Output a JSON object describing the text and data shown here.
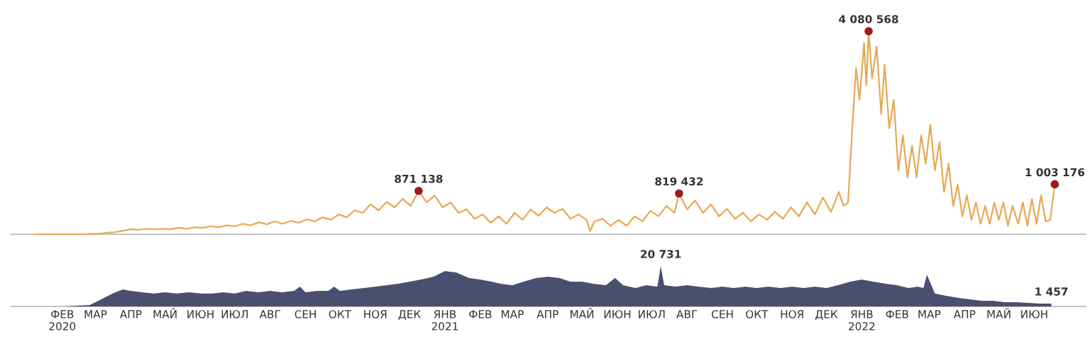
{
  "chart_data": [
    {
      "type": "line",
      "xlim": [
        "2020-01-01",
        "2022-07-30"
      ],
      "tick_labels": false,
      "series": [
        {
          "color": "#e8a854",
          "x": [
            "2020-01-22",
            "2020-02-05",
            "2020-02-19",
            "2020-03-04",
            "2020-03-11",
            "2020-03-18",
            "2020-03-25",
            "2020-04-01",
            "2020-04-08",
            "2020-04-15",
            "2020-04-22",
            "2020-04-29",
            "2020-05-06",
            "2020-05-13",
            "2020-05-20",
            "2020-05-27",
            "2020-06-03",
            "2020-06-10",
            "2020-06-17",
            "2020-06-24",
            "2020-07-01",
            "2020-07-08",
            "2020-07-15",
            "2020-07-22",
            "2020-07-29",
            "2020-08-05",
            "2020-08-12",
            "2020-08-19",
            "2020-08-26",
            "2020-09-02",
            "2020-09-09",
            "2020-09-16",
            "2020-09-23",
            "2020-09-30",
            "2020-10-07",
            "2020-10-14",
            "2020-10-21",
            "2020-10-28",
            "2020-11-04",
            "2020-11-11",
            "2020-11-18",
            "2020-11-25",
            "2020-12-02",
            "2020-12-09",
            "2020-12-16",
            "2020-12-23",
            "2020-12-30",
            "2021-01-06",
            "2021-01-13",
            "2021-01-20",
            "2021-01-27",
            "2021-02-03",
            "2021-02-10",
            "2021-02-17",
            "2021-02-24",
            "2021-03-03",
            "2021-03-10",
            "2021-03-17",
            "2021-03-24",
            "2021-03-31",
            "2021-04-07",
            "2021-04-14",
            "2021-04-21",
            "2021-04-28",
            "2021-05-05",
            "2021-05-12",
            "2021-05-19",
            "2021-05-22",
            "2021-05-26",
            "2021-06-02",
            "2021-06-09",
            "2021-06-16",
            "2021-06-23",
            "2021-06-30",
            "2021-07-07",
            "2021-07-14",
            "2021-07-21",
            "2021-07-28",
            "2021-08-04",
            "2021-08-08",
            "2021-08-15",
            "2021-08-22",
            "2021-08-29",
            "2021-09-05",
            "2021-09-12",
            "2021-09-19",
            "2021-09-26",
            "2021-10-03",
            "2021-10-10",
            "2021-10-17",
            "2021-10-24",
            "2021-10-31",
            "2021-11-07",
            "2021-11-14",
            "2021-11-21",
            "2021-11-28",
            "2021-12-05",
            "2021-12-12",
            "2021-12-19",
            "2021-12-26",
            "2021-12-30",
            "2022-01-03",
            "2022-01-07",
            "2022-01-10",
            "2022-01-13",
            "2022-01-17",
            "2022-01-19",
            "2022-01-21",
            "2022-01-24",
            "2022-01-28",
            "2022-02-01",
            "2022-02-04",
            "2022-02-08",
            "2022-02-12",
            "2022-02-16",
            "2022-02-20",
            "2022-02-24",
            "2022-02-28",
            "2022-03-04",
            "2022-03-08",
            "2022-03-12",
            "2022-03-16",
            "2022-03-20",
            "2022-03-24",
            "2022-03-28",
            "2022-04-01",
            "2022-04-05",
            "2022-04-09",
            "2022-04-13",
            "2022-04-17",
            "2022-04-21",
            "2022-04-25",
            "2022-04-29",
            "2022-05-03",
            "2022-05-07",
            "2022-05-11",
            "2022-05-15",
            "2022-05-19",
            "2022-05-23",
            "2022-05-27",
            "2022-06-01",
            "2022-06-05",
            "2022-06-09",
            "2022-06-13",
            "2022-06-17",
            "2022-06-21",
            "2022-06-25",
            "2022-06-29",
            "2022-07-03"
          ],
          "values": [
            0,
            0,
            0,
            0,
            10000,
            10000,
            30000,
            40000,
            70000,
            100000,
            90000,
            110000,
            100000,
            110000,
            100000,
            130000,
            110000,
            140000,
            130000,
            160000,
            140000,
            180000,
            160000,
            210000,
            180000,
            240000,
            200000,
            260000,
            210000,
            270000,
            230000,
            300000,
            260000,
            340000,
            290000,
            400000,
            340000,
            480000,
            430000,
            600000,
            480000,
            650000,
            540000,
            710000,
            570000,
            871138,
            640000,
            780000,
            540000,
            640000,
            430000,
            500000,
            310000,
            400000,
            230000,
            360000,
            210000,
            430000,
            290000,
            500000,
            370000,
            540000,
            430000,
            510000,
            310000,
            400000,
            290000,
            60000,
            260000,
            310000,
            170000,
            290000,
            170000,
            360000,
            260000,
            470000,
            360000,
            570000,
            430000,
            819432,
            500000,
            680000,
            430000,
            600000,
            360000,
            510000,
            310000,
            430000,
            260000,
            400000,
            290000,
            450000,
            310000,
            540000,
            360000,
            640000,
            400000,
            740000,
            450000,
            850000,
            570000,
            640000,
            2270000,
            3340000,
            2700000,
            3840000,
            2990000,
            4080568,
            3130000,
            3770000,
            2420000,
            3410000,
            2130000,
            2700000,
            1280000,
            1990000,
            1140000,
            1780000,
            1140000,
            1990000,
            1420000,
            2200000,
            1280000,
            1850000,
            850000,
            1420000,
            570000,
            1000000,
            360000,
            780000,
            290000,
            640000,
            210000,
            570000,
            210000,
            640000,
            290000,
            640000,
            170000,
            570000,
            210000,
            640000,
            170000,
            710000,
            210000,
            780000,
            260000,
            290000,
            1003176
          ]
        },
        {
          "type": "scatter",
          "color": "#9b1c20",
          "x": [
            "2020-12-23",
            "2021-08-08",
            "2022-01-21",
            "2022-07-03"
          ],
          "values": [
            871138,
            819432,
            4080568,
            1003176
          ],
          "data_labels": true
        }
      ]
    },
    {
      "type": "area",
      "xlim": [
        "2020-01-01",
        "2022-07-30"
      ],
      "tick_labels": "x",
      "xticks": [
        {
          "value": "2020-02-15",
          "label": "ФЕВ\n2020"
        },
        {
          "value": "2020-03-15",
          "label": "МАР"
        },
        {
          "value": "2020-04-15",
          "label": "АПР"
        },
        {
          "value": "2020-05-15",
          "label": "МАЙ"
        },
        {
          "value": "2020-06-15",
          "label": "ИЮН"
        },
        {
          "value": "2020-07-15",
          "label": "ИЮЛ"
        },
        {
          "value": "2020-08-15",
          "label": "АВГ"
        },
        {
          "value": "2020-09-15",
          "label": "СЕН"
        },
        {
          "value": "2020-10-15",
          "label": "ОКТ"
        },
        {
          "value": "2020-11-15",
          "label": "НОЯ"
        },
        {
          "value": "2020-12-15",
          "label": "ДЕК"
        },
        {
          "value": "2021-01-15",
          "label": "ЯНВ\n2021"
        },
        {
          "value": "2021-02-15",
          "label": "ФЕВ"
        },
        {
          "value": "2021-03-15",
          "label": "МАР"
        },
        {
          "value": "2021-04-15",
          "label": "АПР"
        },
        {
          "value": "2021-05-15",
          "label": "МАЙ"
        },
        {
          "value": "2021-06-15",
          "label": "ИЮН"
        },
        {
          "value": "2021-07-15",
          "label": "ИЮЛ"
        },
        {
          "value": "2021-08-15",
          "label": "АВГ"
        },
        {
          "value": "2021-09-15",
          "label": "СЕН"
        },
        {
          "value": "2021-10-15",
          "label": "ОКТ"
        },
        {
          "value": "2021-11-15",
          "label": "НОЯ"
        },
        {
          "value": "2021-12-15",
          "label": "ДЕК"
        },
        {
          "value": "2022-01-15",
          "label": "ЯНВ\n2022"
        },
        {
          "value": "2022-02-15",
          "label": "ФЕВ"
        },
        {
          "value": "2022-03-15",
          "label": "МАР"
        },
        {
          "value": "2022-04-15",
          "label": "АПР"
        },
        {
          "value": "2022-05-15",
          "label": "МАЙ"
        },
        {
          "value": "2022-06-15",
          "label": "ИЮН"
        }
      ],
      "series": [
        {
          "color": "#4b4f6f",
          "x": [
            "2020-01-22",
            "2020-02-15",
            "2020-03-10",
            "2020-03-20",
            "2020-03-30",
            "2020-04-08",
            "2020-04-15",
            "2020-04-25",
            "2020-05-05",
            "2020-05-15",
            "2020-05-25",
            "2020-06-05",
            "2020-06-15",
            "2020-06-25",
            "2020-07-05",
            "2020-07-15",
            "2020-07-25",
            "2020-08-05",
            "2020-08-15",
            "2020-08-25",
            "2020-09-05",
            "2020-09-10",
            "2020-09-15",
            "2020-09-25",
            "2020-10-05",
            "2020-10-10",
            "2020-10-15",
            "2020-10-25",
            "2020-11-05",
            "2020-11-15",
            "2020-11-25",
            "2020-12-05",
            "2020-12-15",
            "2020-12-25",
            "2021-01-05",
            "2021-01-15",
            "2021-01-25",
            "2021-02-05",
            "2021-02-15",
            "2021-02-25",
            "2021-03-05",
            "2021-03-15",
            "2021-03-25",
            "2021-04-05",
            "2021-04-15",
            "2021-04-25",
            "2021-05-05",
            "2021-05-15",
            "2021-05-25",
            "2021-06-05",
            "2021-06-13",
            "2021-06-20",
            "2021-07-01",
            "2021-07-10",
            "2021-07-20",
            "2021-07-23",
            "2021-07-26",
            "2021-08-05",
            "2021-08-15",
            "2021-08-25",
            "2021-09-05",
            "2021-09-15",
            "2021-09-25",
            "2021-10-05",
            "2021-10-15",
            "2021-10-25",
            "2021-11-05",
            "2021-11-15",
            "2021-11-25",
            "2021-12-05",
            "2021-12-15",
            "2021-12-25",
            "2022-01-05",
            "2022-01-15",
            "2022-01-25",
            "2022-02-05",
            "2022-02-15",
            "2022-02-25",
            "2022-03-05",
            "2022-03-10",
            "2022-03-13",
            "2022-03-20",
            "2022-03-30",
            "2022-04-10",
            "2022-04-20",
            "2022-04-30",
            "2022-05-10",
            "2022-05-20",
            "2022-05-30",
            "2022-06-10",
            "2022-06-20",
            "2022-06-30"
          ],
          "values": [
            0,
            0,
            700,
            3600,
            6600,
            8700,
            8000,
            7300,
            6600,
            7300,
            6600,
            7300,
            6600,
            6600,
            7300,
            6600,
            8000,
            7300,
            8000,
            7300,
            8000,
            10200,
            7300,
            8000,
            8000,
            10200,
            8000,
            8700,
            9500,
            10200,
            10900,
            11600,
            12700,
            13800,
            15300,
            18200,
            17500,
            14600,
            13800,
            12700,
            11600,
            10900,
            12700,
            14600,
            15300,
            14600,
            12700,
            12700,
            11600,
            10900,
            14600,
            10900,
            9500,
            10900,
            10200,
            20731,
            10900,
            10200,
            10900,
            10200,
            9500,
            10200,
            9500,
            10200,
            9500,
            10200,
            9500,
            10200,
            9500,
            10200,
            9500,
            10900,
            12700,
            13800,
            12700,
            11600,
            10900,
            9500,
            10200,
            9500,
            16400,
            6600,
            5500,
            4400,
            3600,
            2900,
            2900,
            2200,
            2200,
            1800,
            1500,
            1457
          ],
          "value_labels": [
            null,
            null,
            null,
            null,
            null,
            null,
            null,
            null,
            null,
            null,
            null,
            null,
            null,
            null,
            null,
            null,
            null,
            null,
            null,
            null,
            null,
            null,
            null,
            null,
            null,
            null,
            null,
            null,
            null,
            null,
            null,
            null,
            null,
            null,
            null,
            null,
            null,
            null,
            null,
            null,
            null,
            null,
            null,
            null,
            null,
            null,
            null,
            null,
            null,
            null,
            null,
            null,
            null,
            null,
            null,
            "20 731",
            null,
            null,
            null,
            null,
            null,
            null,
            null,
            null,
            null,
            null,
            null,
            null,
            null,
            null,
            null,
            null,
            null,
            null,
            null,
            null,
            null,
            null,
            null,
            null,
            null,
            null,
            null,
            null,
            null,
            null,
            null,
            null,
            null,
            null,
            null,
            "1 457"
          ]
        }
      ]
    }
  ]
}
